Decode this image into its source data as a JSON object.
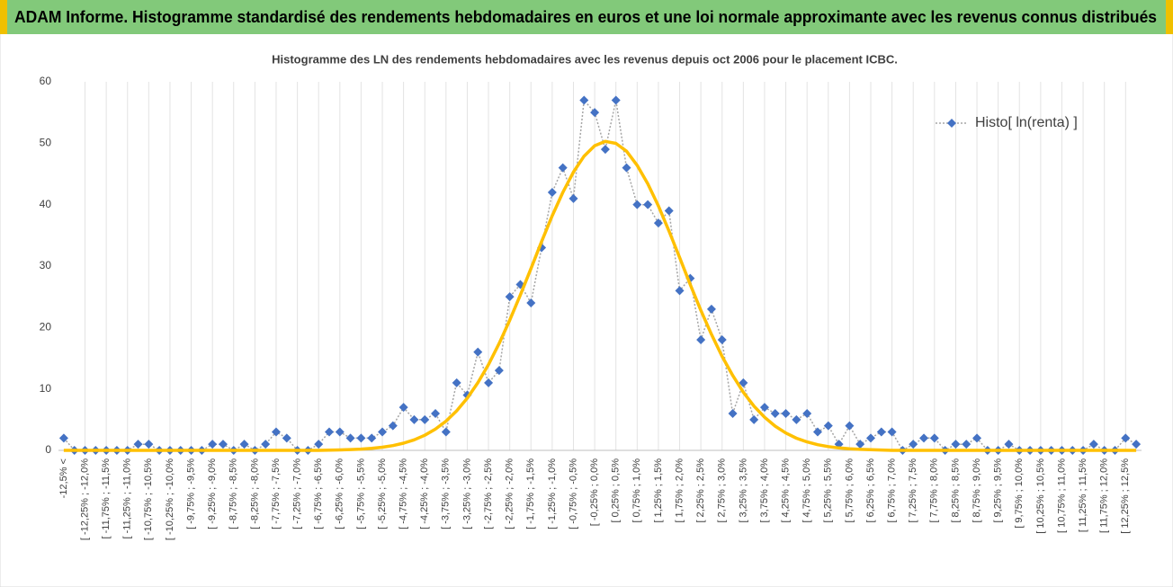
{
  "header": {
    "title": "ADAM Informe. Histogramme standardisé des rendements hebdomadaires en euros et une loi normale approximante avec les revenus connus distribués"
  },
  "chart_data": {
    "type": "line",
    "title": "Histogramme des LN des rendements hebdomadaires avec les revenus depuis oct 2006  pour le placement ICBC.",
    "categories": [
      "-12,5% <",
      null,
      "[ -12,25% ; -12,0%",
      null,
      "[ -11,75% ; -11,5%",
      null,
      "[ -11,25% ; -11,0%",
      null,
      "[ -10,75% ; -10,5%",
      null,
      "[ -10,25% ; -10,0%",
      null,
      "[ -9,75% ; -9,5%",
      null,
      "[ -9,25% ; -9,0%",
      null,
      "[ -8,75% ; -8,5%",
      null,
      "[ -8,25% ; -8,0%",
      null,
      "[ -7,75% ; -7,5%",
      null,
      "[ -7,25% ; -7,0%",
      null,
      "[ -6,75% ; -6,5%",
      null,
      "[ -6,25% ; -6,0%",
      null,
      "[ -5,75% ; -5,5%",
      null,
      "[ -5,25% ; -5,0%",
      null,
      "[ -4,75% ; -4,5%",
      null,
      "[ -4,25% ; -4,0%",
      null,
      "[ -3,75% ; -3,5%",
      null,
      "[ -3,25% ; -3,0%",
      null,
      "[ -2,75% ; -2,5%",
      null,
      "[ -2,25% ; -2,0%",
      null,
      "[ -1,75% ; -1,5%",
      null,
      "[ -1,25% ; -1,0%",
      null,
      "[ -0,75% ; -0,5%",
      null,
      "[ -0,25% ; 0,0%",
      null,
      "[ 0,25% ; 0,5%",
      null,
      "[ 0,75% ; 1,0%",
      null,
      "[ 1,25% ; 1,5%",
      null,
      "[ 1,75% ; 2,0%",
      null,
      "[ 2,25% ; 2,5%",
      null,
      "[ 2,75% ; 3,0%",
      null,
      "[ 3,25% ; 3,5%",
      null,
      "[ 3,75% ; 4,0%",
      null,
      "[ 4,25% ; 4,5%",
      null,
      "[ 4,75% ; 5,0%",
      null,
      "[ 5,25% ; 5,5%",
      null,
      "[ 5,75% ; 6,0%",
      null,
      "[ 6,25% ; 6,5%",
      null,
      "[ 6,75% ; 7,0%",
      null,
      "[ 7,25% ; 7,5%",
      null,
      "[ 7,75% ; 8,0%",
      null,
      "[ 8,25% ; 8,5%",
      null,
      "[ 8,75% ; 9,0%",
      null,
      "[ 9,25% ; 9,5%",
      null,
      "[ 9,75% ; 10,0%",
      null,
      "[ 10,25% ; 10,5%",
      null,
      "[ 10,75% ; 11,0%",
      null,
      "[ 11,25% ; 11,5%",
      null,
      "[ 11,75% ; 12,0%",
      null,
      "[ 12,25% ; 12,5%",
      null
    ],
    "series": [
      {
        "name": "Histo[ ln(renta) ]",
        "color": "#4472c4",
        "line_color": "#a5a5a5",
        "line_style": "dotted",
        "marker": "diamond",
        "values": [
          2,
          0,
          0,
          0,
          0,
          0,
          0,
          1,
          1,
          0,
          0,
          0,
          0,
          0,
          1,
          1,
          0,
          1,
          0,
          1,
          3,
          2,
          0,
          0,
          1,
          3,
          3,
          2,
          2,
          2,
          3,
          4,
          7,
          5,
          5,
          6,
          3,
          11,
          9,
          16,
          11,
          13,
          25,
          27,
          24,
          33,
          42,
          46,
          41,
          57,
          55,
          49,
          57,
          46,
          40,
          40,
          37,
          39,
          26,
          28,
          18,
          23,
          18,
          6,
          11,
          5,
          7,
          6,
          6,
          5,
          6,
          3,
          4,
          1,
          4,
          1,
          2,
          3,
          3,
          0,
          1,
          2,
          2,
          0,
          1,
          1,
          2,
          0,
          0,
          1,
          0,
          0,
          0,
          0,
          0,
          0,
          0,
          1,
          0,
          0,
          2,
          1
        ]
      },
      {
        "color": "#ffc000",
        "line_style": "solid",
        "marker": "none",
        "values": [
          0,
          0,
          0,
          0,
          0,
          0,
          0,
          0,
          0,
          0,
          0,
          0,
          0,
          0,
          0,
          0,
          0,
          0,
          0,
          0,
          0,
          0,
          0,
          0,
          0,
          0.05,
          0.08,
          0.13,
          0.21,
          0.33,
          0.51,
          0.78,
          1.17,
          1.71,
          2.46,
          3.46,
          4.76,
          6.43,
          8.5,
          11.03,
          13.98,
          17.4,
          21.2,
          25.3,
          29.6,
          34,
          38.2,
          42,
          45.3,
          47.9,
          49.6,
          50.3,
          49.97,
          48.7,
          46.4,
          43.4,
          39.8,
          35.7,
          31.4,
          27,
          22.8,
          18.9,
          15.3,
          12.2,
          9.46,
          7.2,
          5.38,
          3.94,
          2.82,
          1.98,
          1.37,
          0.92,
          0.61,
          0.39,
          0.25,
          0.16,
          0.1,
          0.06,
          0,
          0,
          0,
          0,
          0,
          0,
          0,
          0,
          0,
          0,
          0,
          0,
          0,
          0,
          0,
          0,
          0,
          0,
          0,
          0,
          0,
          0,
          0,
          0
        ]
      }
    ],
    "ylim": [
      0,
      60
    ],
    "yticks": [
      0,
      10,
      20,
      30,
      40,
      50,
      60
    ],
    "grid": false,
    "xgrid": true,
    "legend": "top-right"
  }
}
